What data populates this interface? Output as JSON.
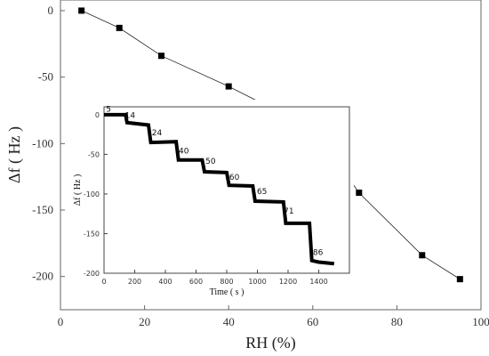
{
  "chart_data": [
    {
      "type": "line",
      "xlabel": "RH (%)",
      "ylabel": "Δf ( Hz )",
      "xlim": [
        0,
        100
      ],
      "ylim": [
        -225,
        8
      ],
      "xticks": [
        0,
        20,
        40,
        60,
        80,
        100
      ],
      "yticks": [
        0,
        -50,
        -100,
        -150,
        -200
      ],
      "markers": "filled-square",
      "color": "#000000",
      "series": [
        {
          "x": [
            5,
            14,
            24,
            40,
            50,
            60,
            65,
            71,
            86,
            95
          ],
          "y": [
            0,
            -13,
            -34,
            -57,
            -73,
            -90,
            -110,
            -137,
            -184,
            -202
          ]
        }
      ]
    },
    {
      "type": "line",
      "xlabel": "Time ( s )",
      "ylabel": "Δf ( Hz )",
      "xlim": [
        0,
        1600
      ],
      "ylim": [
        -200,
        10
      ],
      "xticks": [
        0,
        200,
        400,
        600,
        800,
        1000,
        1200,
        1400
      ],
      "yticks": [
        0,
        -50,
        -100,
        -150,
        -200
      ],
      "line_style": "thick-step",
      "series": [
        {
          "x": [
            0,
            140,
            150,
            290,
            305,
            470,
            485,
            640,
            655,
            800,
            815,
            970,
            985,
            1170,
            1185,
            1340,
            1355,
            1400,
            1500
          ],
          "y": [
            0,
            0,
            -10,
            -13,
            -35,
            -34,
            -57,
            -57,
            -72,
            -73,
            -89,
            -90,
            -109,
            -110,
            -137,
            -137,
            -184,
            -186,
            -188
          ]
        }
      ],
      "annotations": [
        {
          "text": "5",
          "x": 30,
          "y": 4
        },
        {
          "text": "14",
          "x": 170,
          "y": -4
        },
        {
          "text": "24",
          "x": 345,
          "y": -26
        },
        {
          "text": "40",
          "x": 520,
          "y": -49
        },
        {
          "text": "50",
          "x": 695,
          "y": -62
        },
        {
          "text": "60",
          "x": 850,
          "y": -82
        },
        {
          "text": "65",
          "x": 1030,
          "y": -100
        },
        {
          "text": "71",
          "x": 1205,
          "y": -125
        },
        {
          "text": "86",
          "x": 1395,
          "y": -177
        }
      ]
    }
  ]
}
